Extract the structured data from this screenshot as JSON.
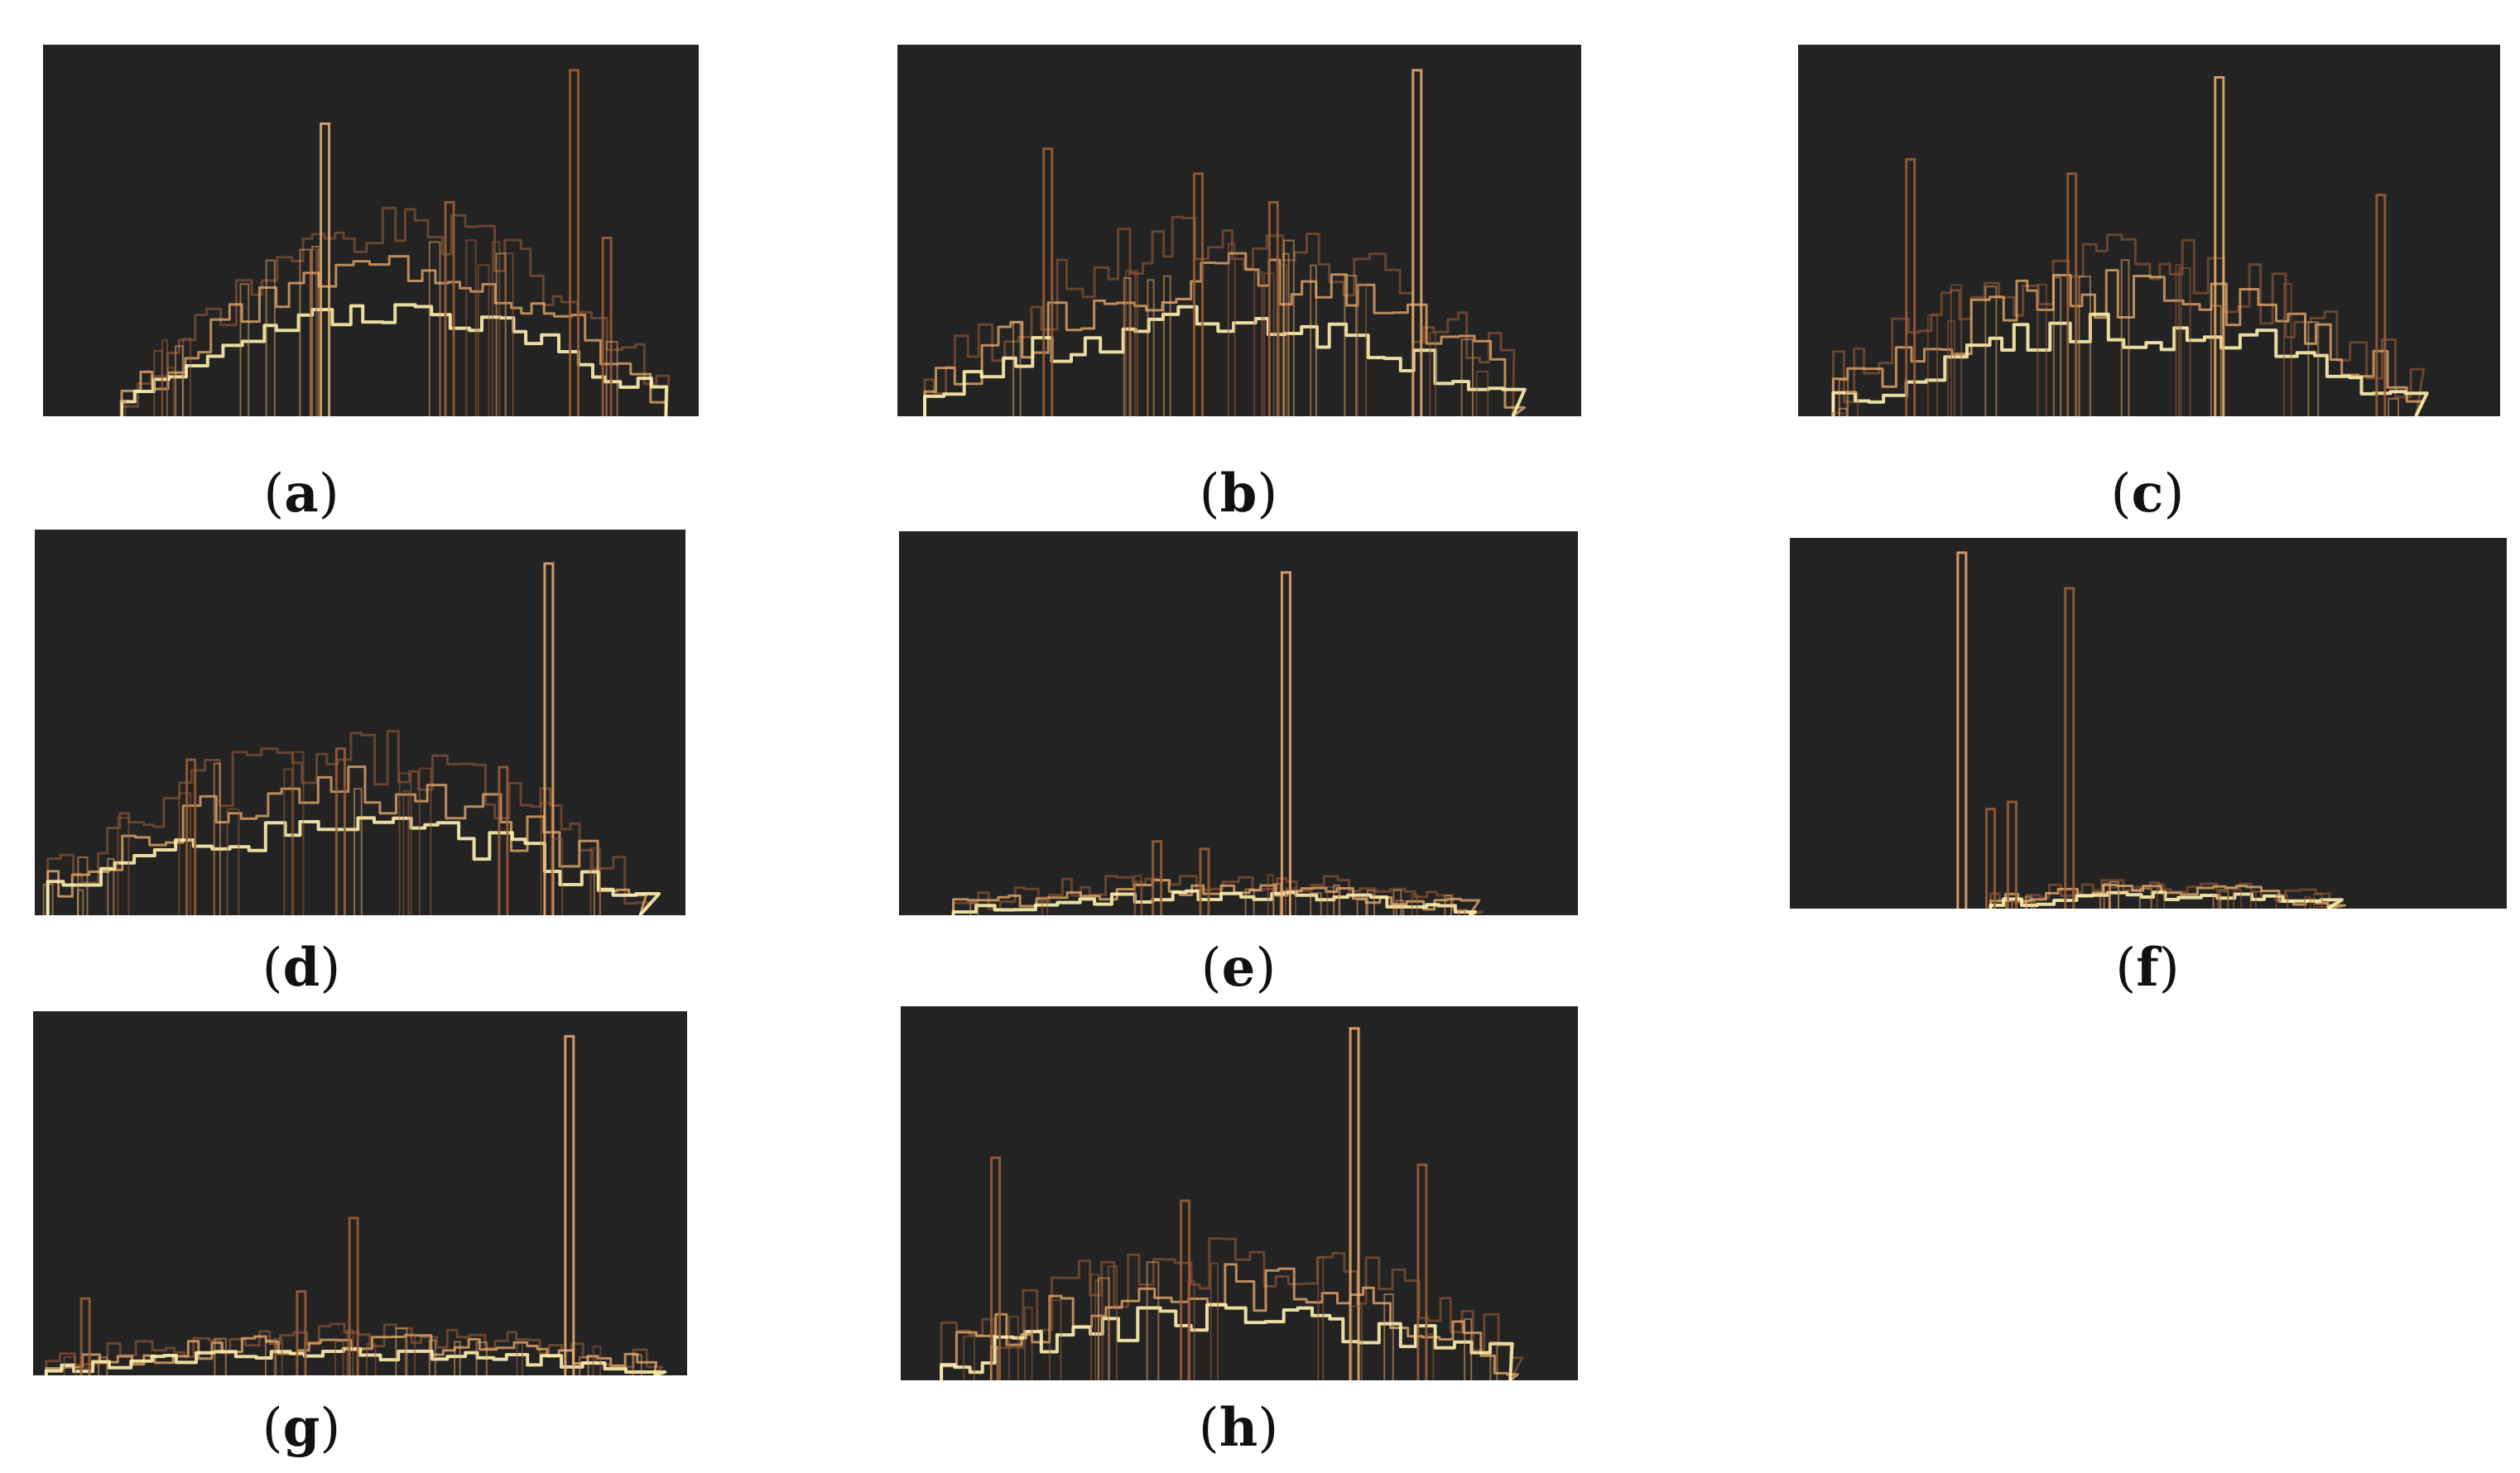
{
  "figure": {
    "panels": [
      {
        "id": "a",
        "label": "a",
        "paren_open": "(",
        "paren_close": ")"
      },
      {
        "id": "b",
        "label": "b",
        "paren_open": "(",
        "paren_close": ")"
      },
      {
        "id": "c",
        "label": "c",
        "paren_open": "(",
        "paren_close": ")"
      },
      {
        "id": "d",
        "label": "d",
        "paren_open": "(",
        "paren_close": ")"
      },
      {
        "id": "e",
        "label": "e",
        "paren_open": "(",
        "paren_close": ")"
      },
      {
        "id": "f",
        "label": "f",
        "paren_open": "(",
        "paren_close": ")"
      },
      {
        "id": "g",
        "label": "g",
        "paren_open": "(",
        "paren_close": ")"
      },
      {
        "id": "h",
        "label": "h",
        "paren_open": "(",
        "paren_close": ")"
      }
    ],
    "colors": {
      "panel_background": "#232323",
      "trace_bright": "#fff2b0",
      "trace_warm": "#f0b070",
      "trace_dark": "#a0603a",
      "page_background": "#ffffff",
      "caption_text": "#111111"
    }
  }
}
